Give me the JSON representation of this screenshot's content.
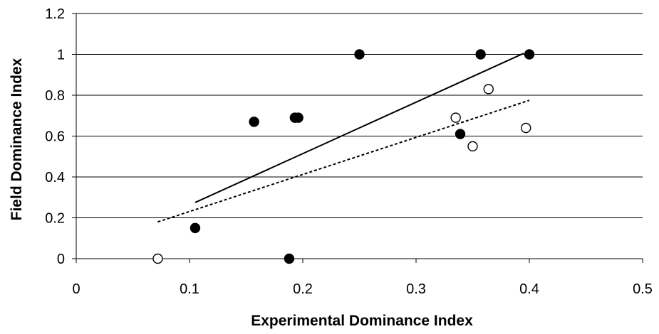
{
  "chart_data": {
    "type": "scatter",
    "title": "",
    "xlabel": "Experimental Dominance Index",
    "ylabel": "Field Dominance Index",
    "xlim": [
      0,
      0.5
    ],
    "ylim": [
      0,
      1.2
    ],
    "x_ticks": [
      "0",
      "0.1",
      "0.2",
      "0.3",
      "0.4",
      "0.5"
    ],
    "y_ticks": [
      "0",
      "0.2",
      "0.4",
      "0.6",
      "0.8",
      "1",
      "1.2"
    ],
    "grid": "horizontal",
    "legend": "none",
    "series": [
      {
        "marker": "filled-circle",
        "color": "#000000",
        "points": [
          {
            "x": 0.105,
            "y": 0.15
          },
          {
            "x": 0.157,
            "y": 0.67
          },
          {
            "x": 0.193,
            "y": 0.69
          },
          {
            "x": 0.196,
            "y": 0.69
          },
          {
            "x": 0.188,
            "y": 0.0
          },
          {
            "x": 0.25,
            "y": 1.0
          },
          {
            "x": 0.357,
            "y": 1.0
          },
          {
            "x": 0.4,
            "y": 1.0
          },
          {
            "x": 0.339,
            "y": 0.61
          }
        ],
        "trendline": {
          "style": "solid",
          "x": [
            0.105,
            0.395
          ],
          "y": [
            0.275,
            1.005
          ]
        }
      },
      {
        "marker": "open-circle",
        "color": "#000000",
        "points": [
          {
            "x": 0.072,
            "y": 0.0
          },
          {
            "x": 0.335,
            "y": 0.69
          },
          {
            "x": 0.35,
            "y": 0.55
          },
          {
            "x": 0.364,
            "y": 0.83
          },
          {
            "x": 0.397,
            "y": 0.64
          }
        ],
        "trendline": {
          "style": "dashed",
          "x": [
            0.072,
            0.4
          ],
          "y": [
            0.18,
            0.775
          ]
        }
      }
    ]
  }
}
